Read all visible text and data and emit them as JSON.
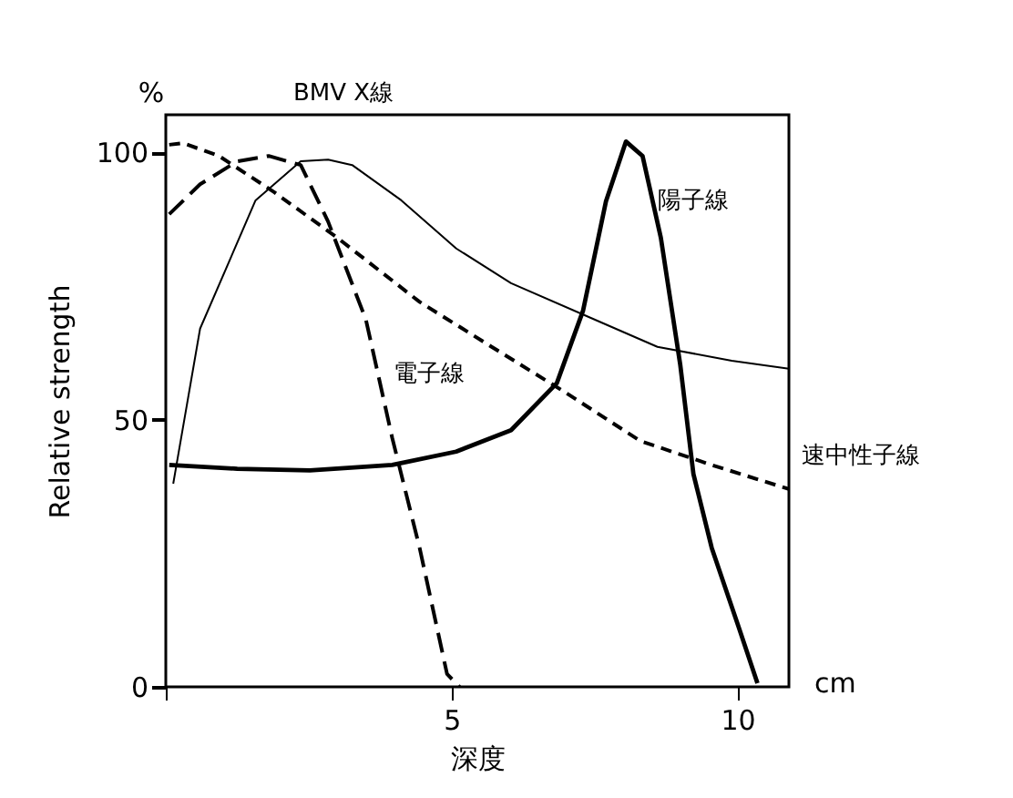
{
  "chart_data": {
    "type": "line",
    "xlabel": "深度",
    "ylabel": "Relative strength",
    "annotations": [
      "%",
      "cm"
    ],
    "xlim": [
      0,
      10.9
    ],
    "ylim": [
      0,
      107
    ],
    "xticks": [
      {
        "value": 0,
        "label": null
      },
      5,
      10
    ],
    "yticks": [
      0,
      50,
      100
    ],
    "grid": false,
    "series": [
      {
        "name": "BMV X線",
        "color": "#000000",
        "line_style": "solid",
        "x": [
          0.13,
          0.6,
          1.57,
          2.36,
          2.84,
          3.26,
          4.12,
          5.08,
          6.04,
          7.5,
          8.6,
          9.9,
          10.9
        ],
        "values": [
          38,
          67,
          91,
          98.3,
          98.6,
          97.6,
          91,
          82,
          75.5,
          68.7,
          63.6,
          61,
          59.5
        ]
      },
      {
        "name": "電子線",
        "color": "#000000",
        "line_style": "dashed",
        "x": [
          0.06,
          0.6,
          1.25,
          1.8,
          2.36,
          2.84,
          3.5,
          3.96,
          4.44,
          4.92,
          5.14
        ],
        "values": [
          88.4,
          94,
          98.3,
          99.3,
          97.6,
          87,
          68.7,
          46.6,
          26,
          2.4,
          0
        ]
      },
      {
        "name": "陽子線",
        "color": "#000000",
        "line_style": "solid",
        "x": [
          0.06,
          1.25,
          2.52,
          3.96,
          5.08,
          6.04,
          6.84,
          7.3,
          7.7,
          8.05,
          8.34,
          8.66,
          9.0,
          9.23,
          9.55,
          10.03,
          10.35
        ],
        "values": [
          41.5,
          40.8,
          40.5,
          41.5,
          44,
          48,
          56.8,
          70.4,
          90.8,
          102,
          99.3,
          84,
          60.2,
          39.8,
          26,
          10.9,
          0.7
        ]
      },
      {
        "name": "速中性子線",
        "color": "#000000",
        "line_style": "dashed",
        "x": [
          0.06,
          0.3,
          0.93,
          1.9,
          3.0,
          4.44,
          5.7,
          7.0,
          8.3,
          9.55,
          10.9
        ],
        "values": [
          101.4,
          101.7,
          99.3,
          92.5,
          84,
          72,
          63.6,
          55,
          46,
          41.5,
          37
        ]
      }
    ]
  }
}
